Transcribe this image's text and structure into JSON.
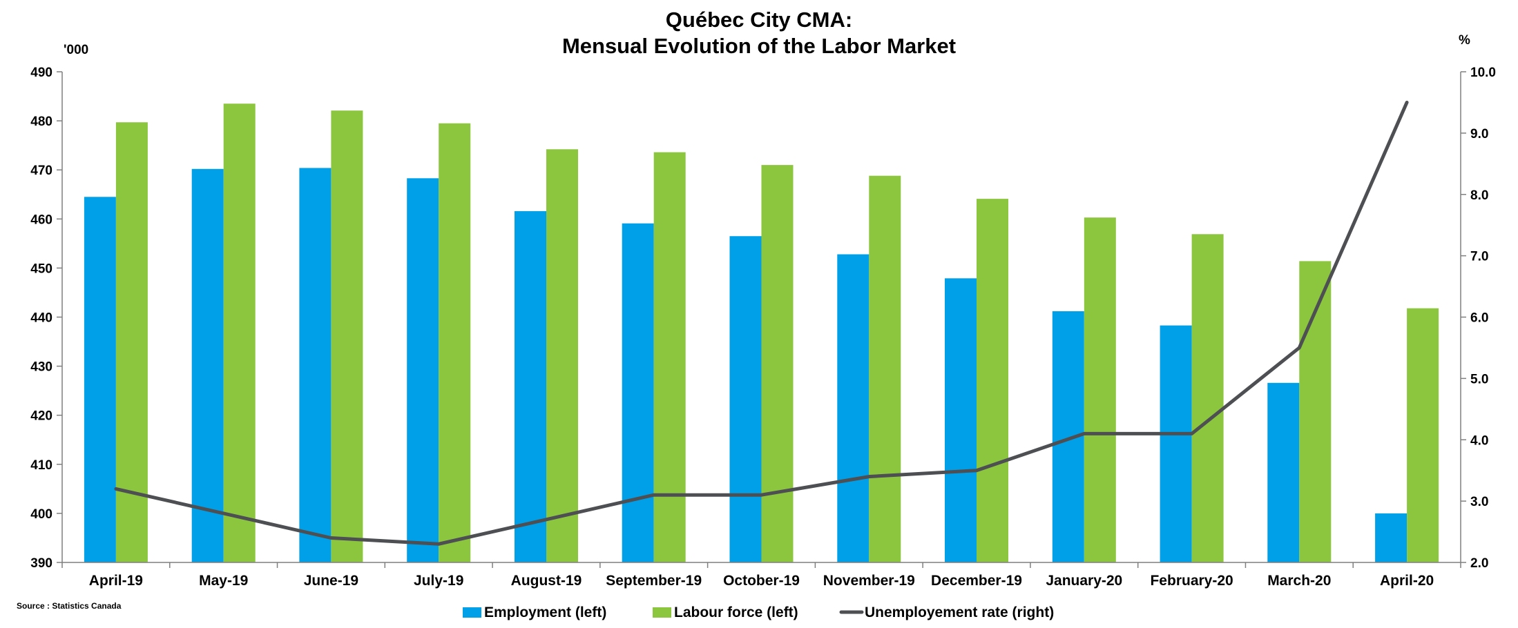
{
  "chart_data": {
    "type": "bar",
    "title": "Québec City CMA:",
    "subtitle": "Mensual Evolution of the Labor Market",
    "left_unit": "'000",
    "right_unit": "%",
    "source": "Source : Statistics Canada",
    "categories": [
      "April-19",
      "May-19",
      "June-19",
      "July-19",
      "August-19",
      "September-19",
      "October-19",
      "November-19",
      "December-19",
      "January-20",
      "February-20",
      "March-20",
      "April-20"
    ],
    "series": [
      {
        "name": "Employment (left)",
        "type": "bar",
        "axis": "left",
        "color": "#00A0E9",
        "values": [
          464.5,
          470.2,
          470.4,
          468.3,
          461.6,
          459.1,
          456.5,
          452.8,
          447.9,
          441.2,
          438.3,
          426.6,
          400.0
        ]
      },
      {
        "name": "Labour force (left)",
        "type": "bar",
        "axis": "left",
        "color": "#8CC63F",
        "values": [
          479.7,
          483.5,
          482.1,
          479.5,
          474.2,
          473.6,
          471.0,
          468.8,
          464.1,
          460.3,
          456.9,
          451.4,
          441.8
        ]
      },
      {
        "name": "Unemployement rate (right)",
        "type": "line",
        "axis": "right",
        "color": "#4D4F53",
        "values": [
          3.2,
          2.8,
          2.4,
          2.3,
          2.7,
          3.1,
          3.1,
          3.4,
          3.5,
          4.1,
          4.1,
          5.5,
          9.5
        ]
      }
    ],
    "y_left": {
      "min": 390,
      "max": 490,
      "step": 10,
      "ticks": [
        "390",
        "400",
        "410",
        "420",
        "430",
        "440",
        "450",
        "460",
        "470",
        "480",
        "490"
      ]
    },
    "y_right": {
      "min": 2.0,
      "max": 10.0,
      "step": 1.0,
      "ticks": [
        "2.0",
        "3.0",
        "4.0",
        "5.0",
        "6.0",
        "7.0",
        "8.0",
        "9.0",
        "10.0"
      ]
    },
    "grid": false,
    "legend_position": "bottom"
  }
}
